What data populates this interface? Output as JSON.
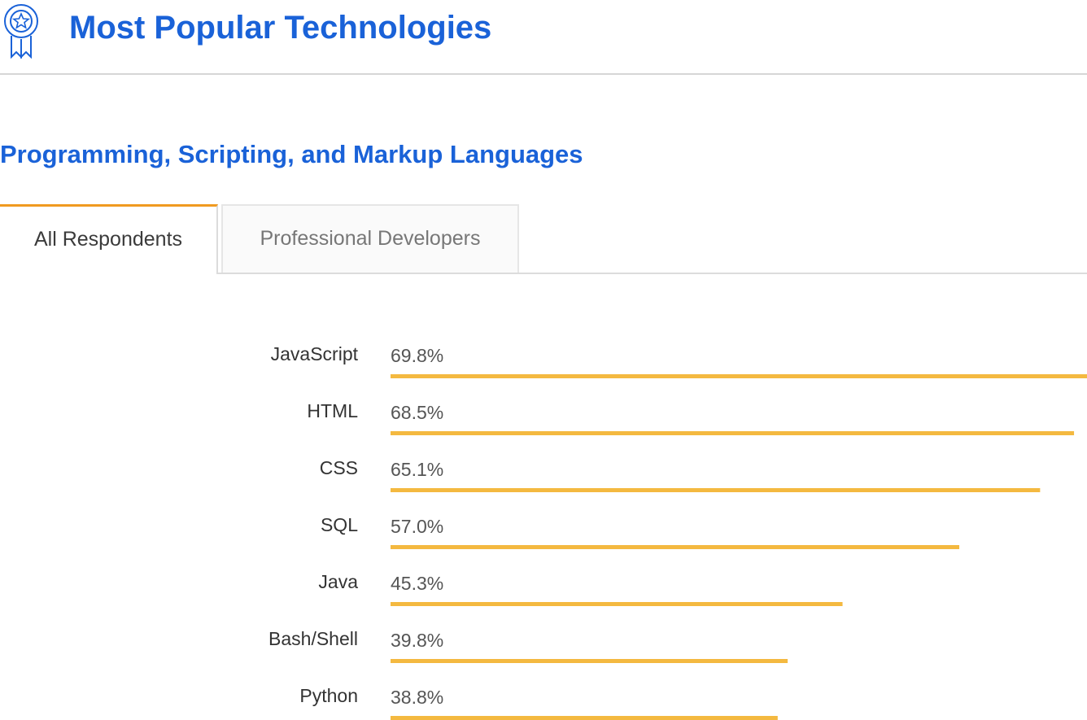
{
  "header": {
    "title": "Most Popular Technologies"
  },
  "section": {
    "title": "Programming, Scripting, and Markup Languages"
  },
  "tabs": [
    "All Respondents",
    "Professional Developers"
  ],
  "chart_data": {
    "type": "bar",
    "orientation": "horizontal",
    "categories": [
      "JavaScript",
      "HTML",
      "CSS",
      "SQL",
      "Java",
      "Bash/Shell",
      "Python"
    ],
    "values": [
      69.8,
      68.5,
      65.1,
      57.0,
      45.3,
      39.8,
      38.8
    ],
    "value_labels": [
      "69.8%",
      "68.5%",
      "65.1%",
      "57.0%",
      "45.3%",
      "39.8%",
      "38.8%"
    ],
    "color": "#f4b940"
  }
}
